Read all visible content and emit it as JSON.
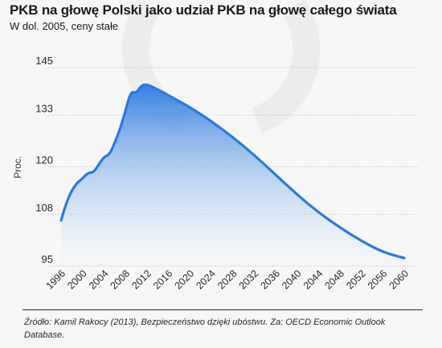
{
  "header": {
    "title": "PKB na głowę Polski jako udział PKB na głowę całego świata",
    "subtitle": "W dol. 2005, ceny stałe"
  },
  "footer": {
    "source": "Źródło: Kamil Rakocy (2013), Bezpieczeństwo dzięki ubóstwu. Za: OECD Economic Outlook Database."
  },
  "colors": {
    "line": "#2a7ae0",
    "area_top": "#2a7ae0",
    "area_bottom": "#e7f0fa",
    "grid": "#b9b9b9",
    "watermark": "#ececec"
  },
  "chart_data": {
    "type": "area",
    "title": "PKB na głowę Polski jako udział PKB na głowę całego świata",
    "subtitle": "W dol. 2005, ceny stałe",
    "xlabel": "",
    "ylabel": "Proc.",
    "xlim": [
      1996,
      2060
    ],
    "ylim": [
      95,
      145
    ],
    "x_ticks": [
      "1996",
      "2000",
      "2004",
      "2008",
      "2012",
      "2016",
      "2020",
      "2024",
      "2028",
      "2032",
      "2036",
      "2040",
      "2044",
      "2048",
      "2052",
      "2056",
      "2060"
    ],
    "y_ticks": [
      "145",
      "133",
      "120",
      "108",
      "95"
    ],
    "y_tick_values": [
      145,
      133,
      120,
      108,
      95
    ],
    "grid": "horizontal-dotted",
    "series": [
      {
        "x": [
          1996,
          1997,
          1998,
          1999,
          2000,
          2001,
          2002,
          2003,
          2004,
          2005,
          2006,
          2007,
          2008,
          2009,
          2010,
          2011,
          2012,
          2014,
          2016,
          2018,
          2020,
          2024,
          2028,
          2032,
          2036,
          2040,
          2044,
          2048,
          2052,
          2056,
          2060
        ],
        "values": [
          106.5,
          111.0,
          114.0,
          116.0,
          117.0,
          118.5,
          118.5,
          120.5,
          122.5,
          123.0,
          126.0,
          129.5,
          134.0,
          139.0,
          138.5,
          140.5,
          140.8,
          139.5,
          138.0,
          136.5,
          135.0,
          131.5,
          127.5,
          123.0,
          118.0,
          113.0,
          108.5,
          104.7,
          101.3,
          98.5,
          97.0
        ]
      }
    ]
  }
}
